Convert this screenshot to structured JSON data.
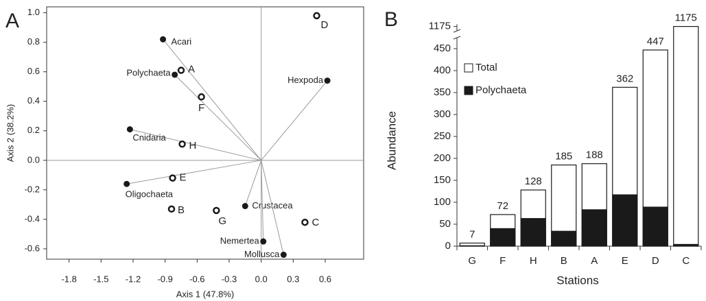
{
  "chart_data": [
    {
      "type": "scatter",
      "panel": "A",
      "xlabel": "Axis 1 (47.8%)",
      "ylabel": "Axis 2 (38.2%)",
      "xlim": [
        -2.01,
        0.96
      ],
      "ylim": [
        -0.67,
        1.04
      ],
      "xticks": [
        -1.8,
        -1.5,
        -1.2,
        -0.9,
        -0.6,
        -0.3,
        {
          "value": 0,
          "label": "0.0"
        },
        0.3,
        0.6
      ],
      "yticks": [
        {
          "value": 1,
          "label": "1.0"
        },
        0.8,
        0.6,
        0.4,
        0.2,
        {
          "value": 0,
          "label": "0.0"
        },
        -0.2,
        -0.4,
        -0.6
      ],
      "series": [
        {
          "marker": "filled",
          "vectors": true,
          "color": "#1a1a1a",
          "labels": [
            "Acari",
            "Polychaeta",
            "Hexpoda",
            "Cnidaria",
            "Oligochaeta",
            "Crustacea",
            "Nemertea",
            "Mollusca"
          ],
          "x": [
            -0.92,
            -0.81,
            0.62,
            -1.23,
            -1.26,
            -0.15,
            0.02,
            0.21
          ],
          "values": [
            0.82,
            0.58,
            0.54,
            0.21,
            -0.16,
            -0.31,
            -0.55,
            -0.64
          ]
        },
        {
          "marker": "open",
          "vectors": false,
          "color": "#1a1a1a",
          "labels": [
            "D",
            "A",
            "F",
            "H",
            "E",
            "B",
            "G",
            "C"
          ],
          "x": [
            0.52,
            -0.75,
            -0.56,
            -0.74,
            -0.83,
            -0.84,
            -0.42,
            0.41
          ],
          "values": [
            0.98,
            0.61,
            0.43,
            0.11,
            -0.12,
            -0.33,
            -0.34,
            -0.42
          ]
        }
      ]
    },
    {
      "type": "bar",
      "panel": "B",
      "xlabel": "Stations",
      "ylabel": "Abundance",
      "categories": [
        "G",
        "F",
        "H",
        "B",
        "A",
        "E",
        "D",
        "C"
      ],
      "ylim": [
        0,
        1180
      ],
      "ybreak": [
        475,
        1165
      ],
      "yticks": [
        0,
        50,
        100,
        150,
        200,
        250,
        300,
        350,
        400,
        450,
        1175
      ],
      "legend": "upper left",
      "series": [
        {
          "name": "Total",
          "color": "#ffffff",
          "values": [
            7,
            72,
            128,
            185,
            188,
            362,
            447,
            1175
          ]
        },
        {
          "name": "Polychaeta",
          "color": "#1a1a1a",
          "values": [
            1,
            40,
            63,
            34,
            83,
            117,
            89,
            4
          ]
        }
      ]
    }
  ]
}
